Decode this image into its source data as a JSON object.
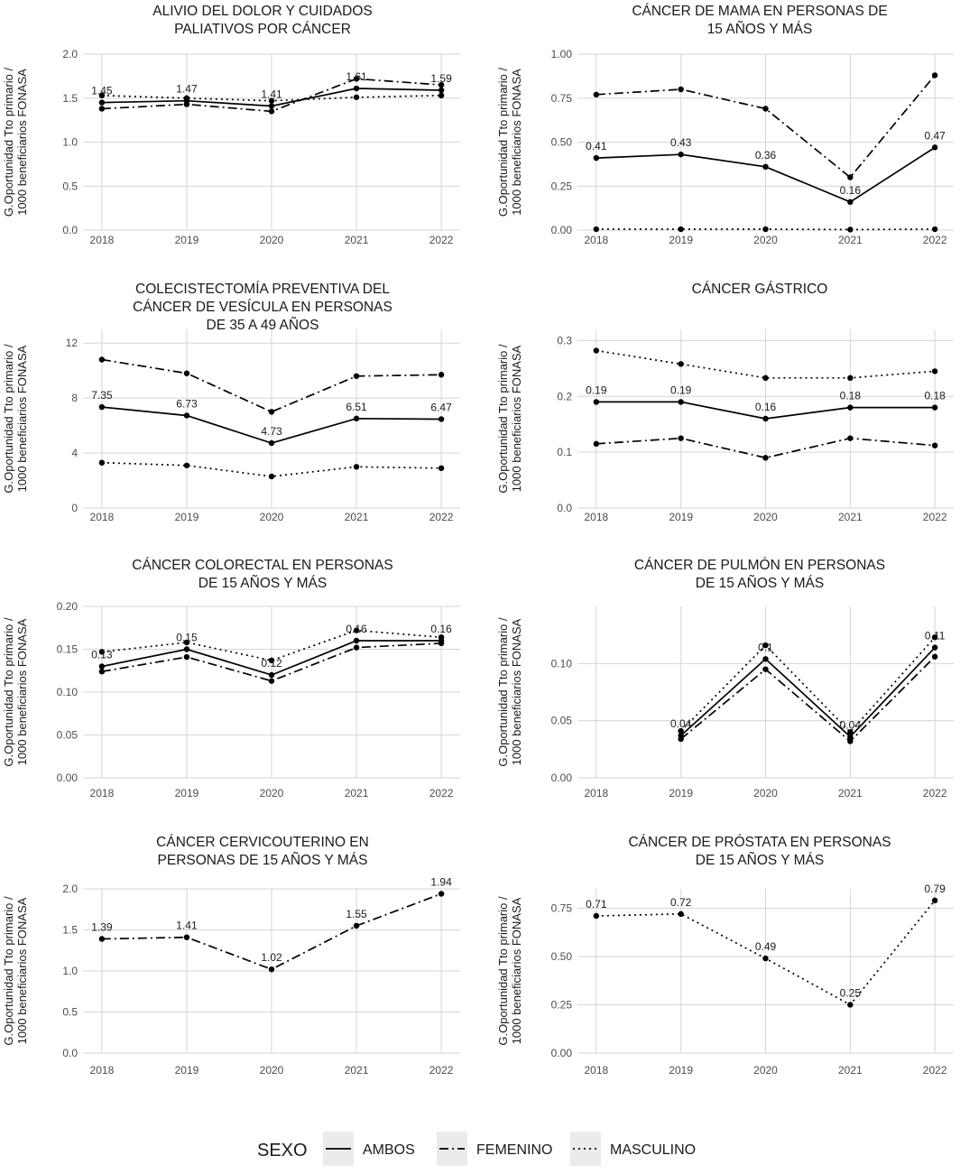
{
  "figure": {
    "legend": {
      "title": "SEXO",
      "entries": [
        {
          "name": "AMBOS",
          "dash": "solid"
        },
        {
          "name": "FEMENINO",
          "dash": "dashdot"
        },
        {
          "name": "MASCULINO",
          "dash": "dotted"
        }
      ]
    },
    "ylabel_line1": "G.Oportunidad Tto primario /",
    "ylabel_line2": "1000 beneficiarios FONASA"
  },
  "chart_data": [
    {
      "type": "line",
      "title": [
        "ALIVIO DEL DOLOR Y CUIDADOS",
        "PALIATIVOS POR CÁNCER"
      ],
      "x": [
        2018,
        2019,
        2020,
        2021,
        2022
      ],
      "ylim": [
        0,
        2.0
      ],
      "yticks": [
        "0.0",
        "0.5",
        "1.0",
        "1.5",
        "2.0"
      ],
      "yticks_values": [
        0,
        0.5,
        1.0,
        1.5,
        2.0
      ],
      "series": [
        {
          "name": "AMBOS",
          "values": [
            1.45,
            1.47,
            1.41,
            1.61,
            1.59
          ]
        },
        {
          "name": "FEMENINO",
          "values": [
            1.38,
            1.43,
            1.35,
            1.72,
            1.65
          ]
        },
        {
          "name": "MASCULINO",
          "values": [
            1.53,
            1.5,
            1.47,
            1.51,
            1.53
          ]
        }
      ],
      "labels": [
        "1.45",
        "1.47",
        "1.41",
        "1.61",
        "1.59"
      ]
    },
    {
      "type": "line",
      "title": [
        "CÁNCER DE MAMA EN PERSONAS DE",
        "15 AÑOS Y MÁS"
      ],
      "x": [
        2018,
        2019,
        2020,
        2021,
        2022
      ],
      "ylim": [
        0,
        1.0
      ],
      "yticks": [
        "0.00",
        "0.25",
        "0.50",
        "0.75",
        "1.00"
      ],
      "yticks_values": [
        0,
        0.25,
        0.5,
        0.75,
        1.0
      ],
      "series": [
        {
          "name": "AMBOS",
          "values": [
            0.41,
            0.43,
            0.36,
            0.16,
            0.47
          ]
        },
        {
          "name": "FEMENINO",
          "values": [
            0.77,
            0.8,
            0.69,
            0.3,
            0.88
          ]
        },
        {
          "name": "MASCULINO",
          "values": [
            0.005,
            0.005,
            0.005,
            0.003,
            0.005
          ]
        }
      ],
      "labels": [
        "0.41",
        "0.43",
        "0.36",
        "0.16",
        "0.47"
      ]
    },
    {
      "type": "line",
      "title": [
        "COLECISTECTOMÍA PREVENTIVA DEL",
        "CÁNCER DE VESÍCULA EN PERSONAS",
        "DE 35 A 49 AÑOS"
      ],
      "x": [
        2018,
        2019,
        2020,
        2021,
        2022
      ],
      "ylim": [
        0,
        13
      ],
      "yticks": [
        "0",
        "4",
        "8",
        "12"
      ],
      "yticks_values": [
        0,
        4,
        8,
        12
      ],
      "series": [
        {
          "name": "AMBOS",
          "values": [
            7.35,
            6.73,
            4.73,
            6.51,
            6.47
          ]
        },
        {
          "name": "FEMENINO",
          "values": [
            10.8,
            9.8,
            7.0,
            9.6,
            9.7
          ]
        },
        {
          "name": "MASCULINO",
          "values": [
            3.3,
            3.1,
            2.3,
            3.0,
            2.9
          ]
        }
      ],
      "labels": [
        "7.35",
        "6.73",
        "4.73",
        "6.51",
        "6.47"
      ]
    },
    {
      "type": "line",
      "title": [
        "CÁNCER GÁSTRICO"
      ],
      "x": [
        2018,
        2019,
        2020,
        2021,
        2022
      ],
      "ylim": [
        0,
        0.32
      ],
      "yticks": [
        "0.0",
        "0.1",
        "0.2",
        "0.3"
      ],
      "yticks_values": [
        0,
        0.1,
        0.2,
        0.3
      ],
      "series": [
        {
          "name": "AMBOS",
          "values": [
            0.19,
            0.19,
            0.16,
            0.18,
            0.18
          ]
        },
        {
          "name": "FEMENINO",
          "values": [
            0.115,
            0.125,
            0.09,
            0.125,
            0.112
          ]
        },
        {
          "name": "MASCULINO",
          "values": [
            0.282,
            0.258,
            0.233,
            0.233,
            0.245
          ]
        }
      ],
      "labels": [
        "0.19",
        "0.19",
        "0.16",
        "0.18",
        "0.18"
      ]
    },
    {
      "type": "line",
      "title": [
        "CÁNCER COLORECTAL EN PERSONAS",
        "DE 15 AÑOS Y MÁS"
      ],
      "x": [
        2018,
        2019,
        2020,
        2021,
        2022
      ],
      "ylim": [
        0,
        0.2
      ],
      "yticks": [
        "0.00",
        "0.05",
        "0.10",
        "0.15",
        "0.20"
      ],
      "yticks_values": [
        0,
        0.05,
        0.1,
        0.15,
        0.2
      ],
      "series": [
        {
          "name": "AMBOS",
          "values": [
            0.13,
            0.15,
            0.12,
            0.16,
            0.16
          ]
        },
        {
          "name": "FEMENINO",
          "values": [
            0.124,
            0.141,
            0.113,
            0.152,
            0.157
          ]
        },
        {
          "name": "MASCULINO",
          "values": [
            0.147,
            0.158,
            0.137,
            0.172,
            0.164
          ]
        }
      ],
      "labels": [
        "0.13",
        "0.15",
        "0.12",
        "0.16",
        "0.16"
      ]
    },
    {
      "type": "line",
      "title": [
        "CÁNCER DE PULMÓN EN PERSONAS",
        "DE 15 AÑOS Y MÁS"
      ],
      "x": [
        2018,
        2019,
        2020,
        2021,
        2022
      ],
      "ylim": [
        0,
        0.15
      ],
      "yticks": [
        "0.00",
        "0.05",
        "0.10"
      ],
      "yticks_values": [
        0,
        0.05,
        0.1
      ],
      "series": [
        {
          "name": "AMBOS",
          "values": [
            null,
            0.037,
            0.104,
            0.036,
            0.114
          ]
        },
        {
          "name": "FEMENINO",
          "values": [
            null,
            0.034,
            0.095,
            0.032,
            0.106
          ]
        },
        {
          "name": "MASCULINO",
          "values": [
            null,
            0.041,
            0.116,
            0.04,
            0.123
          ]
        }
      ],
      "labels": [
        "",
        "0.04",
        "0.1",
        "0.04",
        "0.11"
      ]
    },
    {
      "type": "line",
      "title": [
        "CÁNCER CERVICOUTERINO EN",
        "PERSONAS DE 15 AÑOS Y MÁS"
      ],
      "x": [
        2018,
        2019,
        2020,
        2021,
        2022
      ],
      "ylim": [
        0,
        2.0
      ],
      "yticks": [
        "0.0",
        "0.5",
        "1.0",
        "1.5",
        "2.0"
      ],
      "yticks_values": [
        0,
        0.5,
        1.0,
        1.5,
        2.0
      ],
      "series": [
        {
          "name": "FEMENINO",
          "values": [
            1.39,
            1.41,
            1.02,
            1.55,
            1.94
          ]
        }
      ],
      "labels": [
        "1.39",
        "1.41",
        "1.02",
        "1.55",
        "1.94"
      ]
    },
    {
      "type": "line",
      "title": [
        "CÁNCER DE PRÓSTATA EN PERSONAS",
        "DE 15 AÑOS Y MÁS"
      ],
      "x": [
        2018,
        2019,
        2020,
        2021,
        2022
      ],
      "ylim": [
        0,
        0.85
      ],
      "yticks": [
        "0.00",
        "0.25",
        "0.50",
        "0.75"
      ],
      "yticks_values": [
        0,
        0.25,
        0.5,
        0.75
      ],
      "series": [
        {
          "name": "MASCULINO",
          "values": [
            0.71,
            0.72,
            0.49,
            0.25,
            0.79
          ]
        }
      ],
      "labels": [
        "0.71",
        "0.72",
        "0.49",
        "0.25",
        "0.79"
      ]
    }
  ]
}
